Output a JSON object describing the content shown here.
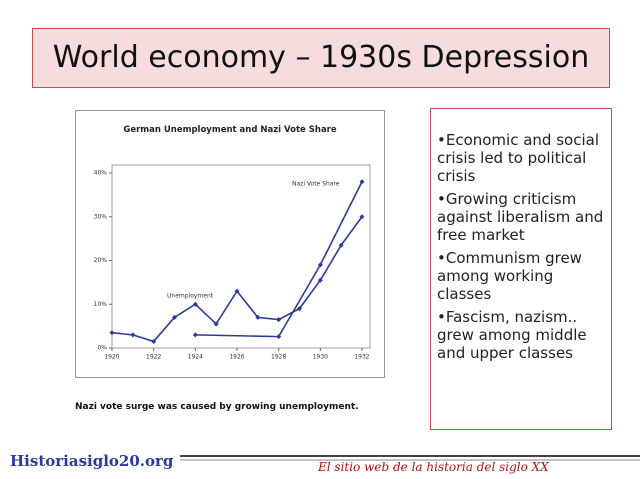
{
  "slide_title": "World economy – 1930s Depression",
  "chart_data": {
    "type": "line",
    "title": "German Unemployment and Nazi Vote Share",
    "xlim": [
      1920,
      1932
    ],
    "xticks": [
      1920,
      1922,
      1924,
      1926,
      1928,
      1930,
      1932
    ],
    "ylim": [
      0,
      40
    ],
    "yticks": [
      {
        "value": 0,
        "label": "0%"
      },
      {
        "value": 10,
        "label": "10%"
      },
      {
        "value": 20,
        "label": "20%"
      },
      {
        "value": 30,
        "label": "30%"
      },
      {
        "value": 40,
        "label": "40%"
      }
    ],
    "grid": false,
    "series": [
      {
        "name": "Unemployment",
        "color": "#2b3a9c",
        "x": [
          1920,
          1921,
          1922,
          1923,
          1924,
          1925,
          1926,
          1927,
          1928,
          1929,
          1930,
          1931,
          1932
        ],
        "values": [
          3.5,
          3,
          1.5,
          7,
          10,
          5.5,
          13,
          7,
          6.5,
          9,
          15.5,
          23.5,
          30
        ]
      },
      {
        "name": "Nazi Vote Share",
        "color": "#2b3a9c",
        "x": [
          1924,
          1928,
          1930,
          1932
        ],
        "values": [
          3,
          2.6,
          19,
          38
        ]
      }
    ],
    "caption": "Nazi vote surge was caused by growing unemployment."
  },
  "bullets": [
    "•Economic and social crisis led to political crisis",
    "•Growing criticism against liberalism and free market",
    "•Communism grew among working classes",
    "•Fascism, nazism.. grew among middle and upper classes"
  ],
  "footer": {
    "site": "Historiasiglo20.org",
    "tagline": "El sitio web de la historia del siglo XX"
  }
}
